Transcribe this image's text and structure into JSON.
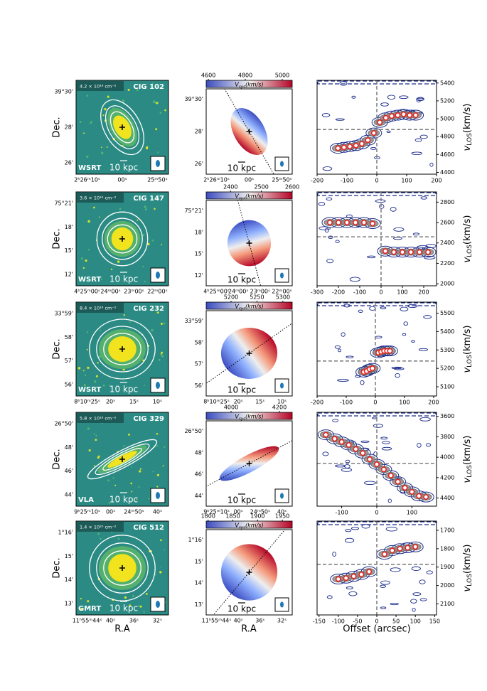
{
  "figure": {
    "dec_label": "Dec.",
    "ra_label": "R.A",
    "offset_label": "Offset (arcsec)",
    "scale_label": "10 kpc",
    "vsys_label": {
      "v": "V",
      "sub": "sys",
      "unit": "(km/s)"
    },
    "vlos_label": {
      "v": "v",
      "sub": "LOS",
      "unit": "(km/s)"
    },
    "rows": [
      {
        "dec_ticks": [
          "39°30'",
          "28'",
          "26'"
        ],
        "ra_ticks": [
          "2ʰ26ᵐ10ˢ",
          "00ˢ",
          "25ᵐ50ˢ"
        ],
        "map": {
          "column_density": "4.2 × 10¹⁸ cm⁻²",
          "name": "CIG 102",
          "telescope": "WSRT"
        },
        "velfield": {
          "cbar_lim": [
            4588,
            5054
          ],
          "cbar_ticks": [
            4600,
            4800,
            5000
          ]
        },
        "pv": {
          "type": "scatter",
          "color": "#e8231f",
          "x": [
            -130,
            -110,
            -90,
            -70,
            -50,
            -30,
            -10,
            10,
            30,
            50,
            70,
            90,
            110,
            130
          ],
          "values": [
            4670,
            4680,
            4690,
            4700,
            4720,
            4760,
            4840,
            4960,
            5010,
            5030,
            5040,
            5050,
            5040,
            5040
          ],
          "xlim": [
            -200,
            200
          ],
          "ylim": [
            4380,
            5430
          ],
          "xticks": [
            -200,
            -100,
            0,
            100,
            200
          ],
          "yticks": [
            4400,
            4600,
            4800,
            5000,
            5200,
            5400
          ],
          "v_sys": 4880
        }
      },
      {
        "dec_ticks": [
          "75°21'",
          "18'",
          "15'",
          "12'"
        ],
        "ra_ticks": [
          "4ʰ25ᵐ00ˢ",
          "24ᵐ00ˢ",
          "23ᵐ00ˢ",
          "22ᵐ00ˢ"
        ],
        "map": {
          "column_density": "3.6 × 10¹⁸ cm⁻²",
          "name": "CIG 147",
          "telescope": "WSRT"
        },
        "velfield": {
          "cbar_lim": [
            2321,
            2600
          ],
          "cbar_ticks": [
            2400,
            2500,
            2600
          ]
        },
        "pv": {
          "type": "scatter",
          "color": "#e8231f",
          "x": [
            -240,
            -200,
            -160,
            -120,
            -80,
            -40,
            20,
            60,
            100,
            140,
            180,
            220
          ],
          "values": [
            2600,
            2600,
            2600,
            2600,
            2600,
            2590,
            2320,
            2310,
            2310,
            2310,
            2310,
            2310
          ],
          "xlim": [
            -300,
            260
          ],
          "ylim": [
            1980,
            2900
          ],
          "xticks": [
            -300,
            -200,
            -100,
            0,
            100,
            200
          ],
          "yticks": [
            2000,
            2200,
            2400,
            2600,
            2800
          ],
          "v_sys": 2460
        }
      },
      {
        "dec_ticks": [
          "33°59'",
          "58'",
          "57'",
          "56'"
        ],
        "ra_ticks": [
          "8ʰ10ᵐ25ˢ",
          "20ˢ",
          "15ˢ",
          "10ˢ"
        ],
        "map": {
          "column_density": "8.4 × 10¹⁸ cm⁻²",
          "name": "CIG 232",
          "telescope": "WSRT"
        },
        "velfield": {
          "cbar_lim": [
            5152,
            5318
          ],
          "cbar_ticks": [
            5200,
            5250,
            5300
          ]
        },
        "pv": {
          "type": "scatter",
          "color": "#e8231f",
          "x": [
            -40,
            -30,
            -20,
            -10,
            10,
            20,
            30,
            40,
            50
          ],
          "values": [
            5180,
            5185,
            5195,
            5200,
            5285,
            5290,
            5295,
            5295,
            5295
          ],
          "xlim": [
            -200,
            210
          ],
          "ylim": [
            5050,
            5560
          ],
          "xticks": [
            -200,
            -100,
            0,
            100,
            200
          ],
          "yticks": [
            5100,
            5200,
            5300,
            5400,
            5500
          ],
          "v_sys": 5240
        }
      },
      {
        "dec_ticks": [
          "26°50'",
          "48'",
          "46'",
          "44'"
        ],
        "ra_ticks": [
          "9ʰ25ᵐ10ˢ",
          "00ˢ",
          "24ᵐ50ˢ",
          "40ˢ"
        ],
        "map": {
          "column_density": "5.8 × 10¹⁸ cm⁻²",
          "name": "CIG 329",
          "telescope": "VLA"
        },
        "velfield": {
          "cbar_lim": [
            3897,
            4253
          ],
          "cbar_ticks": [
            4000,
            4200
          ]
        },
        "pv": {
          "type": "scatter",
          "color": "#e8231f",
          "x": [
            -145,
            -120,
            -100,
            -80,
            -60,
            -40,
            -20,
            0,
            20,
            40,
            60,
            80,
            100,
            120,
            140
          ],
          "values": [
            3780,
            3820,
            3850,
            3880,
            3920,
            3960,
            4020,
            4070,
            4120,
            4180,
            4240,
            4300,
            4340,
            4380,
            4390
          ],
          "xlim": [
            -170,
            170
          ],
          "ylim": [
            4480,
            3560
          ],
          "xticks": [
            -100,
            0,
            100
          ],
          "yticks": [
            3600,
            3800,
            4000,
            4200,
            4400
          ],
          "v_sys": 4060
        }
      },
      {
        "dec_ticks": [
          "1°16'",
          "15'",
          "14'",
          "13'"
        ],
        "ra_ticks": [
          "11ʰ55ᵐ44ˢ",
          "40ˢ",
          "36ˢ",
          "32ˢ"
        ],
        "map": {
          "column_density": "1.4 × 10²⁰ cm⁻²",
          "name": "CIG 512",
          "telescope": "GMRT"
        },
        "velfield": {
          "cbar_lim": [
            1796,
            1970
          ],
          "cbar_ticks": [
            1800,
            1850,
            1900,
            1950
          ]
        },
        "pv": {
          "type": "scatter",
          "color": "#e8231f",
          "x": [
            -100,
            -80,
            -60,
            -40,
            -20,
            20,
            40,
            60,
            80,
            100
          ],
          "values": [
            1965,
            1960,
            1950,
            1940,
            1925,
            1830,
            1810,
            1800,
            1795,
            1790
          ],
          "xlim": [
            -155,
            155
          ],
          "ylim": [
            2160,
            1650
          ],
          "xticks": [
            -150,
            -100,
            -50,
            0,
            50,
            100,
            150
          ],
          "yticks": [
            1700,
            1800,
            1900,
            2000,
            2100
          ],
          "v_sys": 1885
        }
      }
    ]
  }
}
